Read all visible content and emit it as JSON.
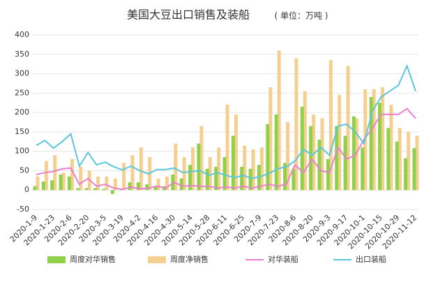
{
  "chart_data": {
    "type": "bar_line",
    "title": "美国大豆出口销售及装船",
    "subtitle": "( 单位：万吨 )",
    "categories": [
      "2020-1-9",
      null,
      "2020-1-23",
      null,
      "2020-2-6",
      null,
      "2020-2-20",
      null,
      "2020-3-5",
      null,
      "2020-3-19",
      null,
      "2020-4-2",
      null,
      "2020-4-16",
      null,
      "2020-4-30",
      null,
      "2020-5-14",
      null,
      "2020-5-28",
      null,
      "2020-6-11",
      null,
      "2020-6-25",
      null,
      "2020-7-9",
      null,
      "2020-7-23",
      null,
      "2020-8-6",
      null,
      "2020-8-20",
      null,
      "2020-9-3",
      null,
      "2020-9-17",
      null,
      "2020-10-1",
      null,
      "2020-10-15",
      null,
      "2020-10-29",
      null,
      "2020-11-12"
    ],
    "series": [
      {
        "name": "周度对华销售",
        "kind": "bar",
        "color": "#8fd24a",
        "values": [
          10,
          22,
          25,
          40,
          35,
          5,
          5,
          5,
          3,
          -10,
          3,
          20,
          20,
          15,
          10,
          10,
          40,
          30,
          65,
          120,
          55,
          60,
          85,
          140,
          60,
          55,
          65,
          170,
          195,
          70,
          55,
          215,
          165,
          130,
          80,
          165,
          140,
          190,
          110,
          240,
          225,
          160,
          125,
          82,
          108
        ]
      },
      {
        "name": "周度净销售",
        "kind": "bar",
        "color": "#f5cf8f",
        "values": [
          35,
          75,
          90,
          45,
          80,
          60,
          50,
          35,
          35,
          30,
          70,
          90,
          110,
          85,
          30,
          35,
          120,
          85,
          110,
          165,
          85,
          110,
          220,
          195,
          115,
          105,
          110,
          265,
          360,
          175,
          340,
          255,
          195,
          185,
          335,
          245,
          320,
          185,
          260,
          260,
          265,
          220,
          160,
          150,
          140
        ]
      },
      {
        "name": "对华装船",
        "kind": "line",
        "color": "#ea7fd0",
        "values": [
          40,
          45,
          48,
          55,
          57,
          15,
          30,
          10,
          15,
          5,
          2,
          8,
          3,
          5,
          10,
          5,
          20,
          10,
          12,
          10,
          10,
          5,
          8,
          5,
          10,
          5,
          10,
          15,
          10,
          15,
          65,
          45,
          80,
          50,
          45,
          110,
          80,
          90,
          130,
          160,
          195,
          195,
          195,
          210,
          185
        ]
      },
      {
        "name": "出口装船",
        "kind": "line",
        "color": "#5bc6dc",
        "values": [
          115,
          128,
          108,
          125,
          145,
          62,
          97,
          65,
          72,
          60,
          52,
          62,
          50,
          42,
          53,
          53,
          57,
          45,
          48,
          50,
          38,
          45,
          38,
          32,
          38,
          30,
          35,
          43,
          55,
          60,
          75,
          105,
          90,
          110,
          90,
          165,
          170,
          150,
          120,
          205,
          240,
          255,
          270,
          320,
          255
        ]
      }
    ],
    "ylim": [
      -50,
      400
    ],
    "yticks": [
      -50,
      0,
      50,
      100,
      150,
      200,
      250,
      300,
      350,
      400
    ],
    "grid": true
  }
}
